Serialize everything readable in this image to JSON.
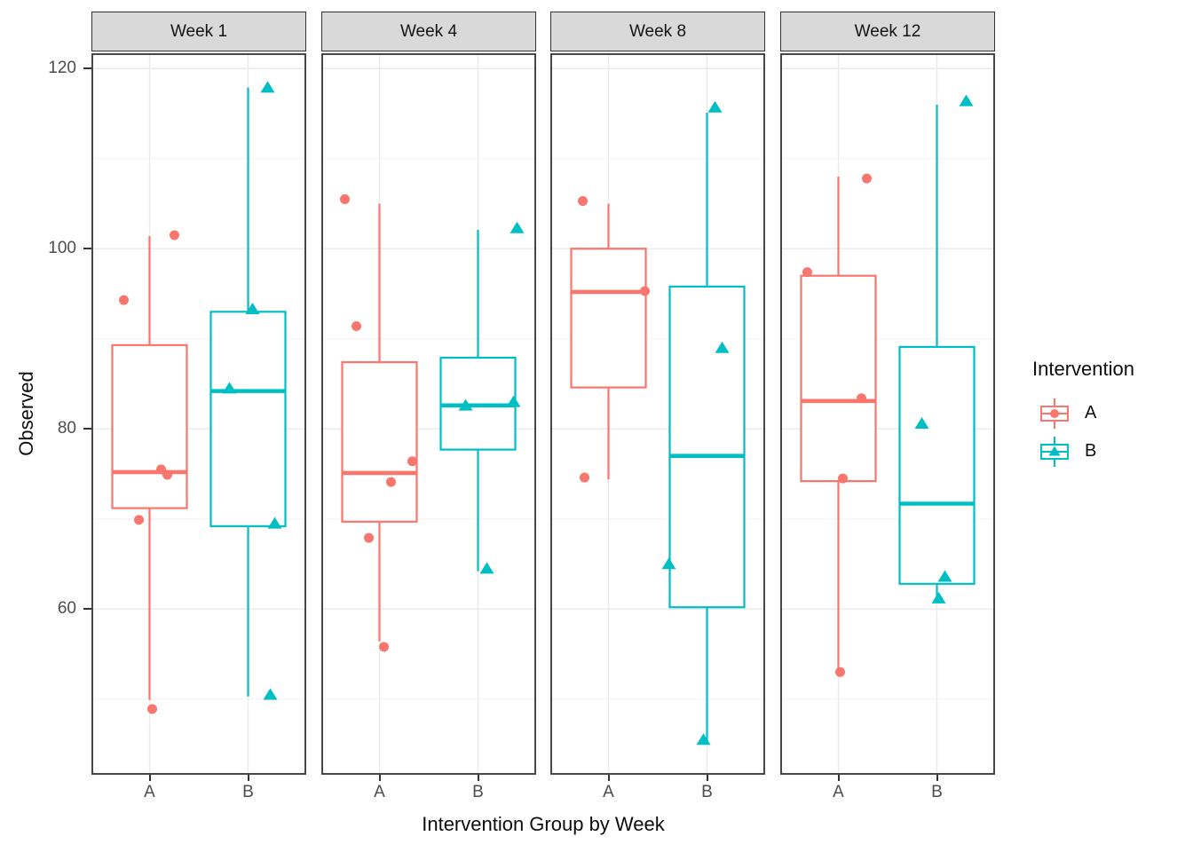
{
  "chart_data": {
    "type": "boxplot",
    "title": "",
    "xlabel": "Intervention Group by Week",
    "ylabel": "Observed",
    "x_categories": [
      "A",
      "B"
    ],
    "y_ticks": [
      60,
      80,
      100,
      120
    ],
    "y_minor_ticks": [
      50,
      70,
      90,
      110
    ],
    "ylim": [
      41.6,
      121.7
    ],
    "grid": true,
    "legend": {
      "title": "Intervention",
      "position": "right",
      "items": [
        {
          "label": "A",
          "marker": "circle",
          "color": "#F8766D"
        },
        {
          "label": "B",
          "marker": "triangle",
          "color": "#00BFC4"
        }
      ]
    },
    "colors": {
      "A": "#F8766D",
      "B": "#00BFC4",
      "strip_fill": "#D9D9D9",
      "panel_border": "#333333",
      "grid_major": "#EBEBEB",
      "grid_minor": "#F4F4F4",
      "tick_text": "#4D4D4D"
    },
    "facets": [
      {
        "label": "Week 1",
        "boxes": [
          {
            "group": "A",
            "whisker_low": 49.9,
            "q1": 71.2,
            "median": 75.2,
            "q3": 89.3,
            "whisker_high": 101.4,
            "points": [
              {
                "value": 101.5,
                "jitter": 28
              },
              {
                "value": 94.3,
                "jitter": -29
              },
              {
                "value": 75.5,
                "jitter": 13
              },
              {
                "value": 74.9,
                "jitter": 20
              },
              {
                "value": 69.9,
                "jitter": -12
              },
              {
                "value": 48.9,
                "jitter": 3
              }
            ]
          },
          {
            "group": "B",
            "whisker_low": 50.3,
            "q1": 69.2,
            "median": 84.2,
            "q3": 93.0,
            "whisker_high": 117.9,
            "points": [
              {
                "value": 117.9,
                "jitter": 22
              },
              {
                "value": 93.3,
                "jitter": 5
              },
              {
                "value": 84.5,
                "jitter": -21
              },
              {
                "value": 69.5,
                "jitter": 30
              },
              {
                "value": 50.5,
                "jitter": 25
              }
            ]
          }
        ]
      },
      {
        "label": "Week 4",
        "boxes": [
          {
            "group": "A",
            "whisker_low": 56.4,
            "q1": 69.7,
            "median": 75.1,
            "q3": 87.4,
            "whisker_high": 105.0,
            "points": [
              {
                "value": 105.5,
                "jitter": -39
              },
              {
                "value": 91.4,
                "jitter": -26
              },
              {
                "value": 76.4,
                "jitter": 37
              },
              {
                "value": 74.1,
                "jitter": 13
              },
              {
                "value": 67.9,
                "jitter": -12
              },
              {
                "value": 55.8,
                "jitter": 5
              }
            ]
          },
          {
            "group": "B",
            "whisker_low": 64.2,
            "q1": 77.7,
            "median": 82.6,
            "q3": 87.9,
            "whisker_high": 102.1,
            "points": [
              {
                "value": 102.3,
                "jitter": 44
              },
              {
                "value": 83.0,
                "jitter": 40
              },
              {
                "value": 82.6,
                "jitter": -14
              },
              {
                "value": 64.5,
                "jitter": 10
              }
            ]
          }
        ]
      },
      {
        "label": "Week 8",
        "boxes": [
          {
            "group": "A",
            "whisker_low": 74.4,
            "q1": 84.6,
            "median": 95.2,
            "q3": 100.0,
            "whisker_high": 105.0,
            "points": [
              {
                "value": 105.3,
                "jitter": -29
              },
              {
                "value": 95.3,
                "jitter": 41
              },
              {
                "value": 74.6,
                "jitter": -27
              }
            ]
          },
          {
            "group": "B",
            "whisker_low": 45.1,
            "q1": 60.2,
            "median": 77.0,
            "q3": 95.8,
            "whisker_high": 115.1,
            "points": [
              {
                "value": 115.7,
                "jitter": 9
              },
              {
                "value": 89.0,
                "jitter": 17
              },
              {
                "value": 65.0,
                "jitter": -43
              },
              {
                "value": 45.5,
                "jitter": -4
              }
            ]
          }
        ]
      },
      {
        "label": "Week 12",
        "boxes": [
          {
            "group": "A",
            "whisker_low": 53.0,
            "q1": 74.2,
            "median": 83.1,
            "q3": 97.0,
            "whisker_high": 108.0,
            "points": [
              {
                "value": 107.8,
                "jitter": 32
              },
              {
                "value": 97.4,
                "jitter": -35
              },
              {
                "value": 83.4,
                "jitter": 26
              },
              {
                "value": 74.5,
                "jitter": 5
              },
              {
                "value": 53.0,
                "jitter": 2
              }
            ]
          },
          {
            "group": "B",
            "whisker_low": 61.1,
            "q1": 62.8,
            "median": 71.7,
            "q3": 89.1,
            "whisker_high": 116.0,
            "points": [
              {
                "value": 116.4,
                "jitter": 33
              },
              {
                "value": 80.6,
                "jitter": -17
              },
              {
                "value": 63.6,
                "jitter": 9
              },
              {
                "value": 61.2,
                "jitter": 2
              }
            ]
          }
        ]
      }
    ]
  }
}
